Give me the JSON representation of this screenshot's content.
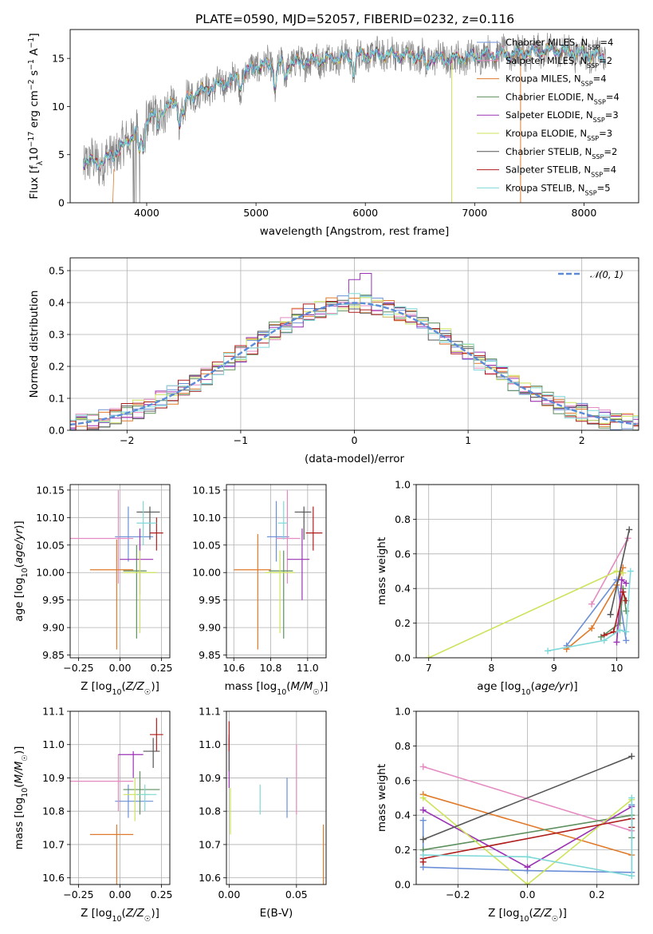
{
  "figure": {
    "title": "PLATE=0590, MJD=52057, FIBERID=0232, z=0.116"
  },
  "colors": {
    "Chabrier MILES": "#6b8fd6",
    "Salpeter MILES": "#e58bc2",
    "Kroupa MILES": "#e07a2a",
    "Chabrier ELODIE": "#5e8f5e",
    "Salpeter ELODIE": "#9b33b4",
    "Kroupa ELODIE": "#cde35b",
    "Chabrier STELIB": "#555555",
    "Salpeter STELIB": "#b01d1d",
    "Kroupa STELIB": "#7fd8d8",
    "data": "#888888",
    "gauss": "#5b8ad8",
    "grid": "#b0b0b0"
  },
  "chart_data": [
    {
      "id": "spectrum",
      "type": "line",
      "title": "PLATE=0590, MJD=52057, FIBERID=0232, z=0.116",
      "xlabel": "wavelength [Angstrom, rest frame]",
      "ylabel": "Flux [f_λ 10^-17 erg cm^-2 s^-1 A^-1]",
      "xlim": [
        3300,
        8500
      ],
      "ylim": [
        0,
        18
      ],
      "xticks": [
        4000,
        5000,
        6000,
        7000,
        8000
      ],
      "yticks": [
        0,
        5,
        10,
        15
      ],
      "grid": false,
      "legend_position": "top-right",
      "series": [
        {
          "name": "Chabrier MILES, N_SSP=4"
        },
        {
          "name": "Salpeter MILES, N_SSP=2"
        },
        {
          "name": "Kroupa MILES, N_SSP=4"
        },
        {
          "name": "Chabrier ELODIE, N_SSP=4"
        },
        {
          "name": "Salpeter ELODIE, N_SSP=3"
        },
        {
          "name": "Kroupa ELODIE, N_SSP=3"
        },
        {
          "name": "Chabrier STELIB, N_SSP=2"
        },
        {
          "name": "Salpeter STELIB, N_SSP=4"
        },
        {
          "name": "Kroupa STELIB, N_SSP=5"
        }
      ],
      "continuum_anchors": {
        "x": [
          3400,
          3600,
          3800,
          4000,
          4200,
          4500,
          4800,
          5000,
          5300,
          5600,
          5900,
          6200,
          6500,
          6800,
          7100,
          7400,
          7700,
          8000,
          8200
        ],
        "y": [
          4.3,
          4.2,
          6.0,
          8.7,
          10.0,
          11.6,
          12.8,
          14.2,
          14.5,
          14.9,
          15.3,
          15.4,
          15.2,
          14.9,
          15.4,
          15.5,
          15.9,
          15.5,
          15.1
        ]
      }
    },
    {
      "id": "residuals",
      "type": "line",
      "xlabel": "(data-model)/error",
      "ylabel": "Normed distribution",
      "xlim": [
        -2.5,
        2.5
      ],
      "ylim": [
        0,
        0.54
      ],
      "xticks": [
        -2,
        -1,
        0,
        1,
        2
      ],
      "yticks": [
        0.0,
        0.1,
        0.2,
        0.3,
        0.4,
        0.5
      ],
      "grid": true,
      "legend_position": "top-right",
      "gauss_label": "𝒩(0, 1)",
      "bin_width": 0.1
    },
    {
      "id": "age-vs-Z",
      "type": "scatter",
      "xlabel": "Z [log10(Z/Z☉)]",
      "ylabel": "age  [log10(age/yr)]",
      "xlim": [
        -0.3,
        0.3
      ],
      "ylim": [
        9.845,
        10.16
      ],
      "xticks": [
        -0.25,
        0.0,
        0.25
      ],
      "yticks": [
        9.85,
        9.9,
        9.95,
        10.0,
        10.05,
        10.1,
        10.15
      ],
      "grid": true,
      "points": [
        {
          "s": "Chabrier MILES",
          "x": 0.05,
          "y": 10.065,
          "xe": [
            -0.03,
            0.2
          ],
          "ye": [
            10.02,
            10.12
          ]
        },
        {
          "s": "Salpeter MILES",
          "x": -0.01,
          "y": 10.062,
          "xe": [
            -0.3,
            0.08
          ],
          "ye": [
            9.98,
            10.15
          ]
        },
        {
          "s": "Kroupa MILES",
          "x": -0.02,
          "y": 10.005,
          "xe": [
            -0.18,
            0.08
          ],
          "ye": [
            9.86,
            10.06
          ]
        },
        {
          "s": "Chabrier ELODIE",
          "x": 0.1,
          "y": 10.003,
          "xe": [
            0.02,
            0.16
          ],
          "ye": [
            9.88,
            10.05
          ]
        },
        {
          "s": "Salpeter ELODIE",
          "x": 0.12,
          "y": 10.024,
          "xe": [
            0.0,
            0.2
          ],
          "ye": [
            9.96,
            10.08
          ]
        },
        {
          "s": "Kroupa ELODIE",
          "x": 0.12,
          "y": 10.0,
          "xe": [
            0.02,
            0.22
          ],
          "ye": [
            9.89,
            10.04
          ]
        },
        {
          "s": "Chabrier STELIB",
          "x": 0.18,
          "y": 10.11,
          "xe": [
            0.1,
            0.24
          ],
          "ye": [
            10.06,
            10.12
          ]
        },
        {
          "s": "Salpeter STELIB",
          "x": 0.22,
          "y": 10.072,
          "xe": [
            0.18,
            0.26
          ],
          "ye": [
            10.04,
            10.1
          ]
        },
        {
          "s": "Kroupa STELIB",
          "x": 0.14,
          "y": 10.09,
          "xe": [
            0.1,
            0.22
          ],
          "ye": [
            10.05,
            10.13
          ]
        }
      ]
    },
    {
      "id": "age-vs-mass",
      "type": "scatter",
      "xlabel": "mass [log10(M/M☉)]",
      "ylabel": "",
      "xlim": [
        10.56,
        11.1
      ],
      "ylim": [
        9.845,
        10.16
      ],
      "xticks": [
        10.6,
        10.8,
        11.0
      ],
      "yticks": [
        9.85,
        9.9,
        9.95,
        10.0,
        10.05,
        10.1,
        10.15
      ],
      "grid": true,
      "points": [
        {
          "s": "Chabrier MILES",
          "x": 10.83,
          "y": 10.065,
          "xe": [
            10.78,
            10.9
          ],
          "ye": [
            10.02,
            10.13
          ]
        },
        {
          "s": "Salpeter MILES",
          "x": 10.89,
          "y": 10.062,
          "xe": [
            10.83,
            10.96
          ],
          "ye": [
            9.98,
            10.15
          ]
        },
        {
          "s": "Kroupa MILES",
          "x": 10.73,
          "y": 10.005,
          "xe": [
            10.6,
            10.8
          ],
          "ye": [
            9.86,
            10.07
          ]
        },
        {
          "s": "Chabrier ELODIE",
          "x": 10.87,
          "y": 10.003,
          "xe": [
            10.79,
            10.92
          ],
          "ye": [
            9.88,
            10.04
          ]
        },
        {
          "s": "Salpeter ELODIE",
          "x": 10.97,
          "y": 10.024,
          "xe": [
            10.89,
            11.01
          ],
          "ye": [
            9.95,
            10.08
          ]
        },
        {
          "s": "Kroupa ELODIE",
          "x": 10.85,
          "y": 10.0,
          "xe": [
            10.77,
            10.93
          ],
          "ye": [
            9.89,
            10.04
          ]
        },
        {
          "s": "Chabrier STELIB",
          "x": 10.98,
          "y": 10.11,
          "xe": [
            10.93,
            11.02
          ],
          "ye": [
            10.06,
            10.12
          ]
        },
        {
          "s": "Salpeter STELIB",
          "x": 11.03,
          "y": 10.072,
          "xe": [
            10.99,
            11.08
          ],
          "ye": [
            10.04,
            10.12
          ]
        },
        {
          "s": "Kroupa STELIB",
          "x": 10.87,
          "y": 10.09,
          "xe": [
            10.84,
            10.89
          ],
          "ye": [
            10.06,
            10.13
          ]
        }
      ]
    },
    {
      "id": "massweight-vs-age",
      "type": "line",
      "xlabel": "age  [log10(age/yr)]",
      "ylabel": "mass weight",
      "xlim": [
        6.8,
        10.35
      ],
      "ylim": [
        0,
        1
      ],
      "xticks": [
        7,
        8,
        9,
        10
      ],
      "yticks": [
        0.0,
        0.2,
        0.4,
        0.6,
        0.8,
        1.0
      ],
      "grid": true,
      "series": [
        {
          "s": "Chabrier MILES",
          "x": [
            9.2,
            10.0,
            10.15
          ],
          "y": [
            0.07,
            0.45,
            0.1
          ]
        },
        {
          "s": "Salpeter MILES",
          "x": [
            9.6,
            10.18
          ],
          "y": [
            0.31,
            0.69
          ]
        },
        {
          "s": "Kroupa MILES",
          "x": [
            9.2,
            9.6,
            10.0,
            10.1
          ],
          "y": [
            0.05,
            0.17,
            0.42,
            0.52
          ]
        },
        {
          "s": "Chabrier ELODIE",
          "x": [
            9.75,
            10.05,
            10.1,
            10.15
          ],
          "y": [
            0.12,
            0.2,
            0.4,
            0.27
          ]
        },
        {
          "s": "Salpeter ELODIE",
          "x": [
            10.0,
            10.08,
            10.15
          ],
          "y": [
            0.09,
            0.45,
            0.43
          ]
        },
        {
          "s": "Kroupa ELODIE",
          "x": [
            7.0,
            10.0,
            10.1
          ],
          "y": [
            0.0,
            0.5,
            0.49
          ]
        },
        {
          "s": "Chabrier STELIB",
          "x": [
            9.9,
            10.2
          ],
          "y": [
            0.25,
            0.74
          ]
        },
        {
          "s": "Salpeter STELIB",
          "x": [
            9.8,
            9.95,
            10.1,
            10.15
          ],
          "y": [
            0.13,
            0.15,
            0.38,
            0.33
          ]
        },
        {
          "s": "Kroupa STELIB",
          "x": [
            8.9,
            9.8,
            10.05,
            10.15,
            10.22
          ],
          "y": [
            0.04,
            0.1,
            0.16,
            0.15,
            0.5
          ]
        }
      ]
    },
    {
      "id": "mass-vs-Z",
      "type": "scatter",
      "xlabel": "Z [log10(Z/Z☉)]",
      "ylabel": "mass [log10(M/M☉)]",
      "xlim": [
        -0.3,
        0.3
      ],
      "ylim": [
        10.58,
        11.1
      ],
      "xticks": [
        -0.25,
        0.0,
        0.25
      ],
      "yticks": [
        10.6,
        10.7,
        10.8,
        10.9,
        11.0,
        11.1
      ],
      "grid": true,
      "points": [
        {
          "s": "Chabrier MILES",
          "x": 0.05,
          "y": 10.83,
          "xe": [
            -0.03,
            0.2
          ],
          "ye": [
            10.78,
            10.88
          ]
        },
        {
          "s": "Salpeter MILES",
          "x": -0.01,
          "y": 10.89,
          "xe": [
            -0.3,
            0.08
          ],
          "ye": [
            10.8,
            10.97
          ]
        },
        {
          "s": "Kroupa MILES",
          "x": -0.02,
          "y": 10.73,
          "xe": [
            -0.18,
            0.08
          ],
          "ye": [
            10.58,
            10.76
          ]
        },
        {
          "s": "Chabrier ELODIE",
          "x": 0.12,
          "y": 10.865,
          "xe": [
            0.02,
            0.24
          ],
          "ye": [
            10.79,
            10.92
          ]
        },
        {
          "s": "Salpeter ELODIE",
          "x": 0.08,
          "y": 10.97,
          "xe": [
            -0.01,
            0.14
          ],
          "ye": [
            10.9,
            10.98
          ]
        },
        {
          "s": "Kroupa ELODIE",
          "x": 0.09,
          "y": 10.85,
          "xe": [
            0.02,
            0.18
          ],
          "ye": [
            10.77,
            10.9
          ]
        },
        {
          "s": "Chabrier STELIB",
          "x": 0.2,
          "y": 10.98,
          "xe": [
            0.14,
            0.24
          ],
          "ye": [
            10.93,
            11.02
          ]
        },
        {
          "s": "Salpeter STELIB",
          "x": 0.22,
          "y": 11.03,
          "xe": [
            0.18,
            0.26
          ],
          "ye": [
            10.98,
            11.08
          ]
        },
        {
          "s": "Kroupa STELIB",
          "x": 0.15,
          "y": 10.85,
          "xe": [
            0.1,
            0.22
          ],
          "ye": [
            10.8,
            10.88
          ]
        }
      ]
    },
    {
      "id": "mass-vs-EBV",
      "type": "scatter",
      "xlabel": "E(B-V)",
      "ylabel": "",
      "xlim": [
        -0.002,
        0.072
      ],
      "ylim": [
        10.58,
        11.1
      ],
      "xticks": [
        0.0,
        0.05
      ],
      "yticks": [
        10.6,
        10.7,
        10.8,
        10.9,
        11.0,
        11.1
      ],
      "grid": true,
      "points": [
        {
          "s": "Chabrier MILES",
          "x": 0.043,
          "y": 10.84,
          "ye": [
            10.78,
            10.9
          ]
        },
        {
          "s": "Salpeter MILES",
          "x": 0.05,
          "y": 10.89,
          "ye": [
            10.79,
            11.0
          ]
        },
        {
          "s": "Kroupa MILES",
          "x": 0.07,
          "y": 10.68,
          "ye": [
            10.58,
            10.76
          ]
        },
        {
          "s": "Salpeter ELODIE",
          "x": 0.0,
          "y": 10.97,
          "ye": [
            10.87,
            11.03
          ]
        },
        {
          "s": "Kroupa ELODIE",
          "x": 0.001,
          "y": 10.79,
          "ye": [
            10.73,
            10.87
          ]
        },
        {
          "s": "Chabrier STELIB",
          "x": 0.0,
          "y": 10.98,
          "ye": [
            10.92,
            11.02
          ]
        },
        {
          "s": "Salpeter STELIB",
          "x": 0.0,
          "y": 11.03,
          "ye": [
            10.98,
            11.07
          ]
        },
        {
          "s": "Kroupa STELIB",
          "x": 0.023,
          "y": 10.84,
          "ye": [
            10.79,
            10.88
          ]
        }
      ]
    },
    {
      "id": "massweight-vs-Z",
      "type": "line",
      "xlabel": "Z [log10(Z/Z☉)]",
      "ylabel": "mass weight",
      "xlim": [
        -0.32,
        0.32
      ],
      "ylim": [
        0,
        1
      ],
      "xticks": [
        -0.2,
        0.0,
        0.2
      ],
      "yticks": [
        0.0,
        0.2,
        0.4,
        0.6,
        0.8,
        1.0
      ],
      "grid": true,
      "series": [
        {
          "s": "Chabrier MILES",
          "x": [
            -0.3,
            -0.3,
            0.0,
            0.3,
            0.3
          ],
          "y": [
            0.37,
            0.1,
            0.08,
            0.07,
            0.46
          ]
        },
        {
          "s": "Salpeter MILES",
          "x": [
            -0.3,
            0.3
          ],
          "y": [
            0.68,
            0.31
          ]
        },
        {
          "s": "Kroupa MILES",
          "x": [
            -0.3,
            0.3
          ],
          "y": [
            0.52,
            0.17
          ]
        },
        {
          "s": "Chabrier ELODIE",
          "x": [
            -0.3,
            0.3,
            0.3
          ],
          "y": [
            0.2,
            0.4,
            0.27
          ]
        },
        {
          "s": "Salpeter ELODIE",
          "x": [
            -0.3,
            0.0,
            0.3
          ],
          "y": [
            0.43,
            0.1,
            0.45
          ]
        },
        {
          "s": "Kroupa ELODIE",
          "x": [
            -0.3,
            0.0,
            0.3
          ],
          "y": [
            0.5,
            0.0,
            0.49
          ]
        },
        {
          "s": "Chabrier STELIB",
          "x": [
            -0.3,
            0.3
          ],
          "y": [
            0.26,
            0.74
          ]
        },
        {
          "s": "Salpeter STELIB",
          "x": [
            -0.3,
            -0.3,
            0.3,
            0.3
          ],
          "y": [
            0.13,
            0.15,
            0.38,
            0.33
          ]
        },
        {
          "s": "Kroupa STELIB",
          "x": [
            -0.3,
            0.0,
            0.3,
            0.3
          ],
          "y": [
            0.17,
            0.16,
            0.05,
            0.5
          ]
        }
      ]
    }
  ]
}
